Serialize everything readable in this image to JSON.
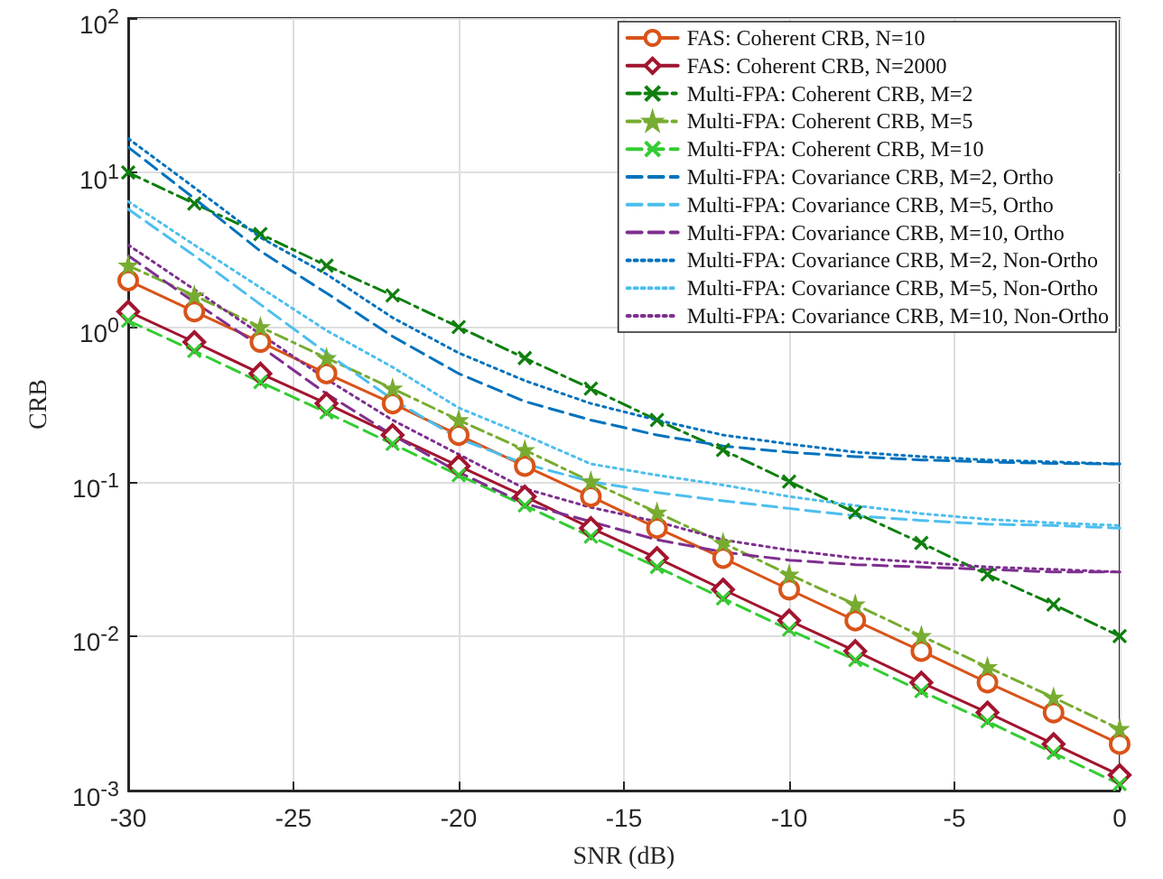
{
  "chart_data": {
    "type": "line",
    "xlabel": "SNR (dB)",
    "ylabel": "CRB",
    "log": "y",
    "grid": true,
    "legend": "top right",
    "x": [
      -30,
      -28,
      -26,
      -24,
      -22,
      -20,
      -18,
      -16,
      -14,
      -12,
      -10,
      -8,
      -6,
      -4,
      -2,
      0
    ],
    "xlim": [
      -30,
      0
    ],
    "xticks": [
      -30,
      -25,
      -20,
      -15,
      -10,
      -5,
      0
    ],
    "ylim": [
      0.001,
      100
    ],
    "yticks": [
      {
        "value": 0.001,
        "label": "10$^{-3}$"
      },
      {
        "value": 0.01,
        "label": "10$^{-2}$"
      },
      {
        "value": 0.1,
        "label": "10$^{-1}$"
      },
      {
        "value": 1,
        "label": "10$^{0}$"
      },
      {
        "value": 10,
        "label": "10$^{1}$"
      },
      {
        "value": 100,
        "label": "10$^{2}$"
      }
    ],
    "series": [
      {
        "name": "FAS: Coherent CRB, N=10",
        "color": "#d95319",
        "marker": "circle",
        "line_style": "solid",
        "values": [
          2,
          1.26,
          0.8,
          0.5,
          0.32,
          0.2,
          0.126,
          0.08,
          0.05,
          0.032,
          0.02,
          0.0126,
          0.008,
          0.005,
          0.0032,
          0.002
        ]
      },
      {
        "name": "FAS: Coherent CRB, N=2000",
        "color": "#a2142f",
        "marker": "diamond",
        "line_style": "solid",
        "values": [
          1.26,
          0.8,
          0.5,
          0.32,
          0.2,
          0.126,
          0.08,
          0.05,
          0.032,
          0.02,
          0.0126,
          0.008,
          0.005,
          0.0032,
          0.002,
          0.00126
        ]
      },
      {
        "name": "Multi-FPA: Coherent CRB, M=2",
        "color": "#0e7f0e",
        "marker": "cross",
        "line_style": "dashdot",
        "values": [
          10,
          6.3,
          4,
          2.5,
          1.6,
          1,
          0.63,
          0.4,
          0.25,
          0.16,
          0.1,
          0.063,
          0.04,
          0.025,
          0.016,
          0.01
        ]
      },
      {
        "name": "Multi-FPA: Coherent CRB, M=5",
        "color": "#77ac30",
        "marker": "star",
        "line_style": "dashdot",
        "values": [
          2.5,
          1.6,
          1,
          0.63,
          0.4,
          0.25,
          0.16,
          0.1,
          0.063,
          0.04,
          0.025,
          0.016,
          0.01,
          0.0063,
          0.004,
          0.0025
        ]
      },
      {
        "name": "Multi-FPA: Coherent CRB, M=10",
        "color": "#33cc33",
        "marker": "cross",
        "line_style": "dashed",
        "values": [
          1.1,
          0.7,
          0.44,
          0.28,
          0.175,
          0.11,
          0.07,
          0.044,
          0.028,
          0.0175,
          0.011,
          0.007,
          0.0044,
          0.0028,
          0.00175,
          0.0011
        ]
      },
      {
        "name": "Multi-FPA: Covariance CRB, M=2, Ortho",
        "color": "#0072bd",
        "marker": "none",
        "line_style": "dashed",
        "values": [
          14.6,
          6.8,
          3.1,
          1.66,
          0.87,
          0.5,
          0.33,
          0.25,
          0.2,
          0.17,
          0.155,
          0.145,
          0.138,
          0.134,
          0.131,
          0.13
        ]
      },
      {
        "name": "Multi-FPA: Covariance CRB, M=5, Ortho",
        "color": "#4dbeee",
        "marker": "none",
        "line_style": "dashed",
        "values": [
          5.8,
          2.9,
          1.4,
          0.68,
          0.34,
          0.19,
          0.13,
          0.1,
          0.085,
          0.075,
          0.067,
          0.06,
          0.056,
          0.053,
          0.052,
          0.05
        ]
      },
      {
        "name": "Multi-FPA: Covariance CRB, M=10, Ortho",
        "color": "#7e2f8e",
        "marker": "none",
        "line_style": "dashed",
        "values": [
          2.9,
          1.45,
          0.75,
          0.37,
          0.2,
          0.115,
          0.072,
          0.055,
          0.042,
          0.035,
          0.031,
          0.029,
          0.028,
          0.027,
          0.026,
          0.026
        ]
      },
      {
        "name": "Multi-FPA: Covariance CRB, M=2, Non-Ortho",
        "color": "#0072bd",
        "marker": "none",
        "line_style": "dotted",
        "values": [
          16.6,
          8,
          3.8,
          2.2,
          1.15,
          0.68,
          0.45,
          0.32,
          0.25,
          0.2,
          0.175,
          0.155,
          0.145,
          0.138,
          0.134,
          0.13
        ]
      },
      {
        "name": "Multi-FPA: Covariance CRB, M=5, Non-Ortho",
        "color": "#4dbeee",
        "marker": "none",
        "line_style": "dotted",
        "values": [
          6.5,
          3.4,
          1.8,
          0.95,
          0.55,
          0.3,
          0.2,
          0.13,
          0.11,
          0.095,
          0.08,
          0.07,
          0.062,
          0.057,
          0.054,
          0.052
        ]
      },
      {
        "name": "Multi-FPA: Covariance CRB, M=10, Non-Ortho",
        "color": "#7e2f8e",
        "marker": "none",
        "line_style": "dotted",
        "values": [
          3.4,
          1.75,
          0.9,
          0.46,
          0.25,
          0.15,
          0.09,
          0.068,
          0.055,
          0.042,
          0.036,
          0.032,
          0.03,
          0.028,
          0.027,
          0.026
        ]
      }
    ]
  }
}
